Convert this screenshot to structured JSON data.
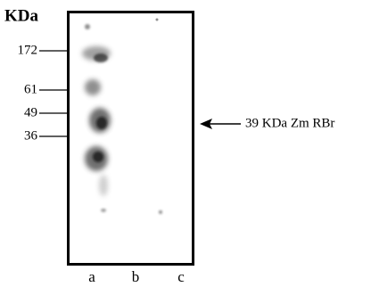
{
  "figure": {
    "unit_label": "KDa",
    "markers": [
      "172",
      "61",
      "49",
      "36"
    ],
    "lanes": [
      "a",
      "b",
      "c"
    ],
    "annotation": "39 KDa Zm RBr"
  }
}
